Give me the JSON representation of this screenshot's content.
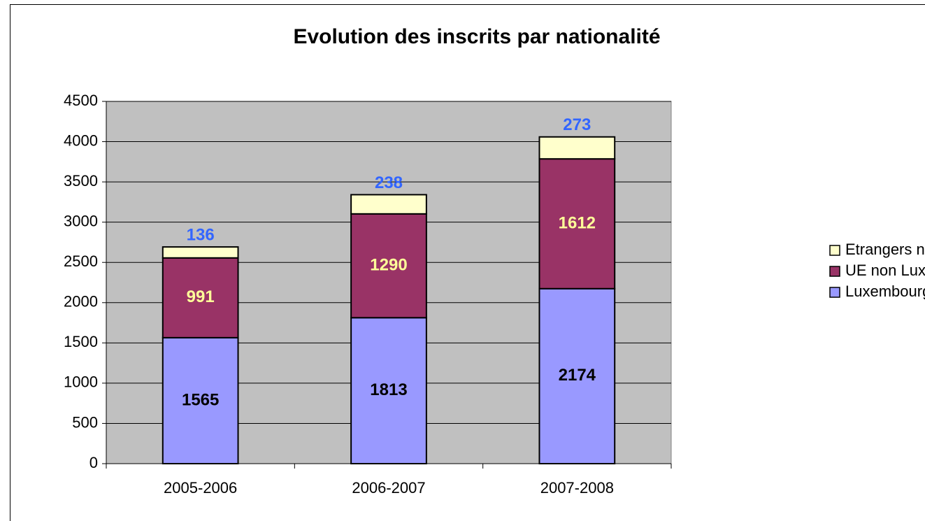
{
  "chart_data": {
    "type": "stacked_bar",
    "title": "Evolution des inscrits par nationalité",
    "categories": [
      "2005-2006",
      "2006-2007",
      "2007-2008"
    ],
    "series": [
      {
        "name": "Luxembourgeoise",
        "color": "#9999ff",
        "label_color": "#000000",
        "values": [
          1565,
          1813,
          2174
        ]
      },
      {
        "name": "UE non Lux.",
        "color": "#993366",
        "label_color": "#ffff99",
        "values": [
          991,
          1290,
          1612
        ]
      },
      {
        "name": "Etrangers non UE",
        "color": "#ffffcc",
        "label_color": "#3366ff",
        "values": [
          136,
          238,
          273
        ]
      }
    ],
    "ylim": [
      0,
      4500
    ],
    "yticks": [
      0,
      500,
      1000,
      1500,
      2000,
      2500,
      3000,
      3500,
      4000,
      4500
    ],
    "grid": true,
    "legend": "right",
    "plot_background": "#c0c0c0"
  }
}
